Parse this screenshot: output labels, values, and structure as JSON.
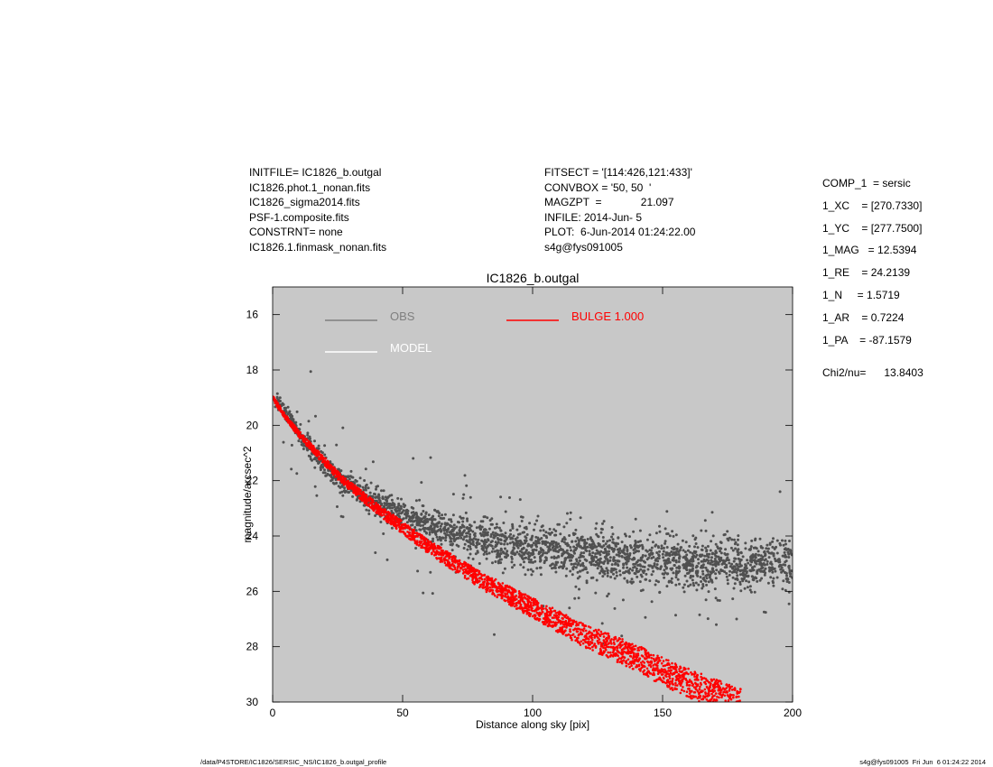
{
  "header": {
    "left": [
      "INITFILE= IC1826_b.outgal",
      "IC1826.phot.1_nonan.fits",
      "IC1826_sigma2014.fits",
      "PSF-1.composite.fits",
      "CONSTRNT= none",
      "IC1826.1.finmask_nonan.fits"
    ],
    "middle": [
      "FITSECT = '[114:426,121:433]'",
      "CONVBOX = '50, 50  '",
      "MAGZPT  =             21.097",
      "INFILE: 2014-Jun- 5",
      "PLOT:  6-Jun-2014 01:24:22.00",
      "s4g@fys091005"
    ],
    "params": [
      "COMP_1  = sersic",
      "1_XC    = [270.7330]",
      "1_YC    = [277.7500]",
      "1_MAG   = 12.5394",
      "1_RE    = 24.2139",
      "1_N     = 1.5719",
      "1_AR    = 0.7224",
      "1_PA    = -87.1579"
    ],
    "chi": "Chi2/nu=      13.8403"
  },
  "footer": {
    "left": "/data/P4STORE/IC1826/SERSIC_NS/IC1826_b.outgal_profile",
    "right": "s4g@fys091005  Fri Jun  6 01:24:22 2014"
  },
  "chart_data": {
    "type": "scatter",
    "title": "IC1826_b.outgal",
    "xlabel": "Distance along sky [pix]",
    "ylabel": "magnitude/arcsec^2",
    "xlim": [
      0,
      200
    ],
    "ylim": [
      30,
      15
    ],
    "y_inverted": true,
    "xticks": [
      0,
      50,
      100,
      150,
      200
    ],
    "yticks": [
      16,
      18,
      20,
      22,
      24,
      26,
      28,
      30
    ],
    "background": "#c8c8c8",
    "grid": false,
    "legend": [
      {
        "name": "OBS",
        "color": "#7f7f7f"
      },
      {
        "name": "MODEL",
        "color": "#ffffff"
      },
      {
        "name": "BULGE  1.000",
        "color": "#ff0000"
      }
    ],
    "series": [
      {
        "name": "OBS",
        "color": "#505050",
        "x": [
          2,
          5,
          8,
          10,
          15,
          20,
          25,
          30,
          40,
          50,
          60,
          70,
          80,
          90,
          100,
          110,
          120,
          130,
          140,
          150,
          160,
          170,
          180,
          190,
          200
        ],
        "y": [
          19.2,
          19.6,
          19.9,
          20.3,
          20.9,
          21.4,
          21.9,
          22.2,
          22.8,
          23.2,
          23.6,
          23.9,
          24.1,
          24.3,
          24.45,
          24.55,
          24.65,
          24.75,
          24.85,
          24.9,
          24.95,
          25.0,
          25.0,
          25.05,
          25.1
        ]
      },
      {
        "name": "BULGE  1.000",
        "color": "#ff0000",
        "x": [
          0,
          5,
          10,
          15,
          20,
          25,
          30,
          40,
          50,
          60,
          70,
          80,
          90,
          100,
          110,
          120,
          130,
          140,
          150,
          160,
          170,
          180
        ],
        "y": [
          19.0,
          19.7,
          20.3,
          20.8,
          21.3,
          21.8,
          22.2,
          23.0,
          23.7,
          24.4,
          25.0,
          25.6,
          26.1,
          26.6,
          27.1,
          27.6,
          28.0,
          28.4,
          28.9,
          29.3,
          29.7,
          30.0
        ]
      }
    ]
  }
}
